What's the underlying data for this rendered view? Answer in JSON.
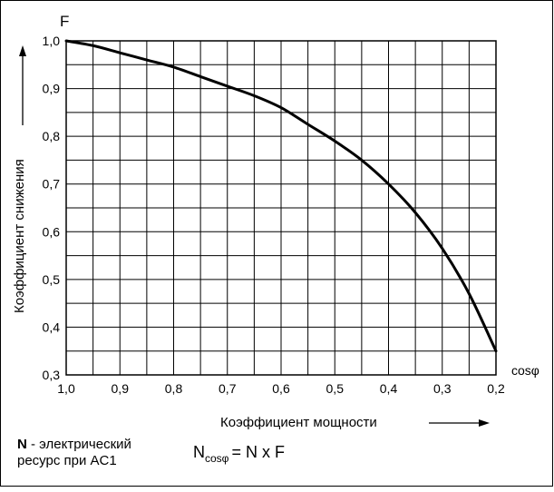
{
  "chart_data": {
    "type": "line",
    "x": [
      1.0,
      0.95,
      0.9,
      0.85,
      0.8,
      0.75,
      0.7,
      0.65,
      0.6,
      0.55,
      0.5,
      0.45,
      0.4,
      0.35,
      0.3,
      0.25,
      0.2
    ],
    "series": [
      {
        "values": [
          1.0,
          0.99,
          0.975,
          0.96,
          0.945,
          0.925,
          0.905,
          0.885,
          0.86,
          0.825,
          0.79,
          0.75,
          0.7,
          0.64,
          0.565,
          0.47,
          0.35
        ]
      }
    ],
    "xlim": [
      1.0,
      0.2
    ],
    "ylim": [
      0.3,
      1.0
    ],
    "x_reversed": true,
    "x_tick_values": [
      1.0,
      0.9,
      0.8,
      0.7,
      0.6,
      0.5,
      0.4,
      0.3,
      0.2
    ],
    "x_tick_labels": [
      "1,0",
      "0,9",
      "0,8",
      "0,7",
      "0,6",
      "0,5",
      "0,4",
      "0,3",
      "0,2"
    ],
    "y_tick_values": [
      1.0,
      0.9,
      0.8,
      0.7,
      0.6,
      0.5,
      0.4,
      0.3
    ],
    "y_tick_labels": [
      "1,0",
      "0,9",
      "0,8",
      "0,7",
      "0,6",
      "0,5",
      "0,4",
      "0,3"
    ],
    "grid": true,
    "grid_x_step": 0.05,
    "grid_y_step": 0.05,
    "y_axis_name": "F",
    "x_axis_name": "cosφ",
    "xlabel": "Коэффициент мощности",
    "ylabel": "Коэффициент снижения",
    "line_color": "#000000"
  },
  "legend": {
    "n_bold": "N",
    "n_desc_line1": " - электрический",
    "n_desc_line2": "ресурс при AC1"
  },
  "formula": {
    "lhs": "N",
    "lhs_sub": "cosφ",
    "rhs": "= N x F"
  }
}
